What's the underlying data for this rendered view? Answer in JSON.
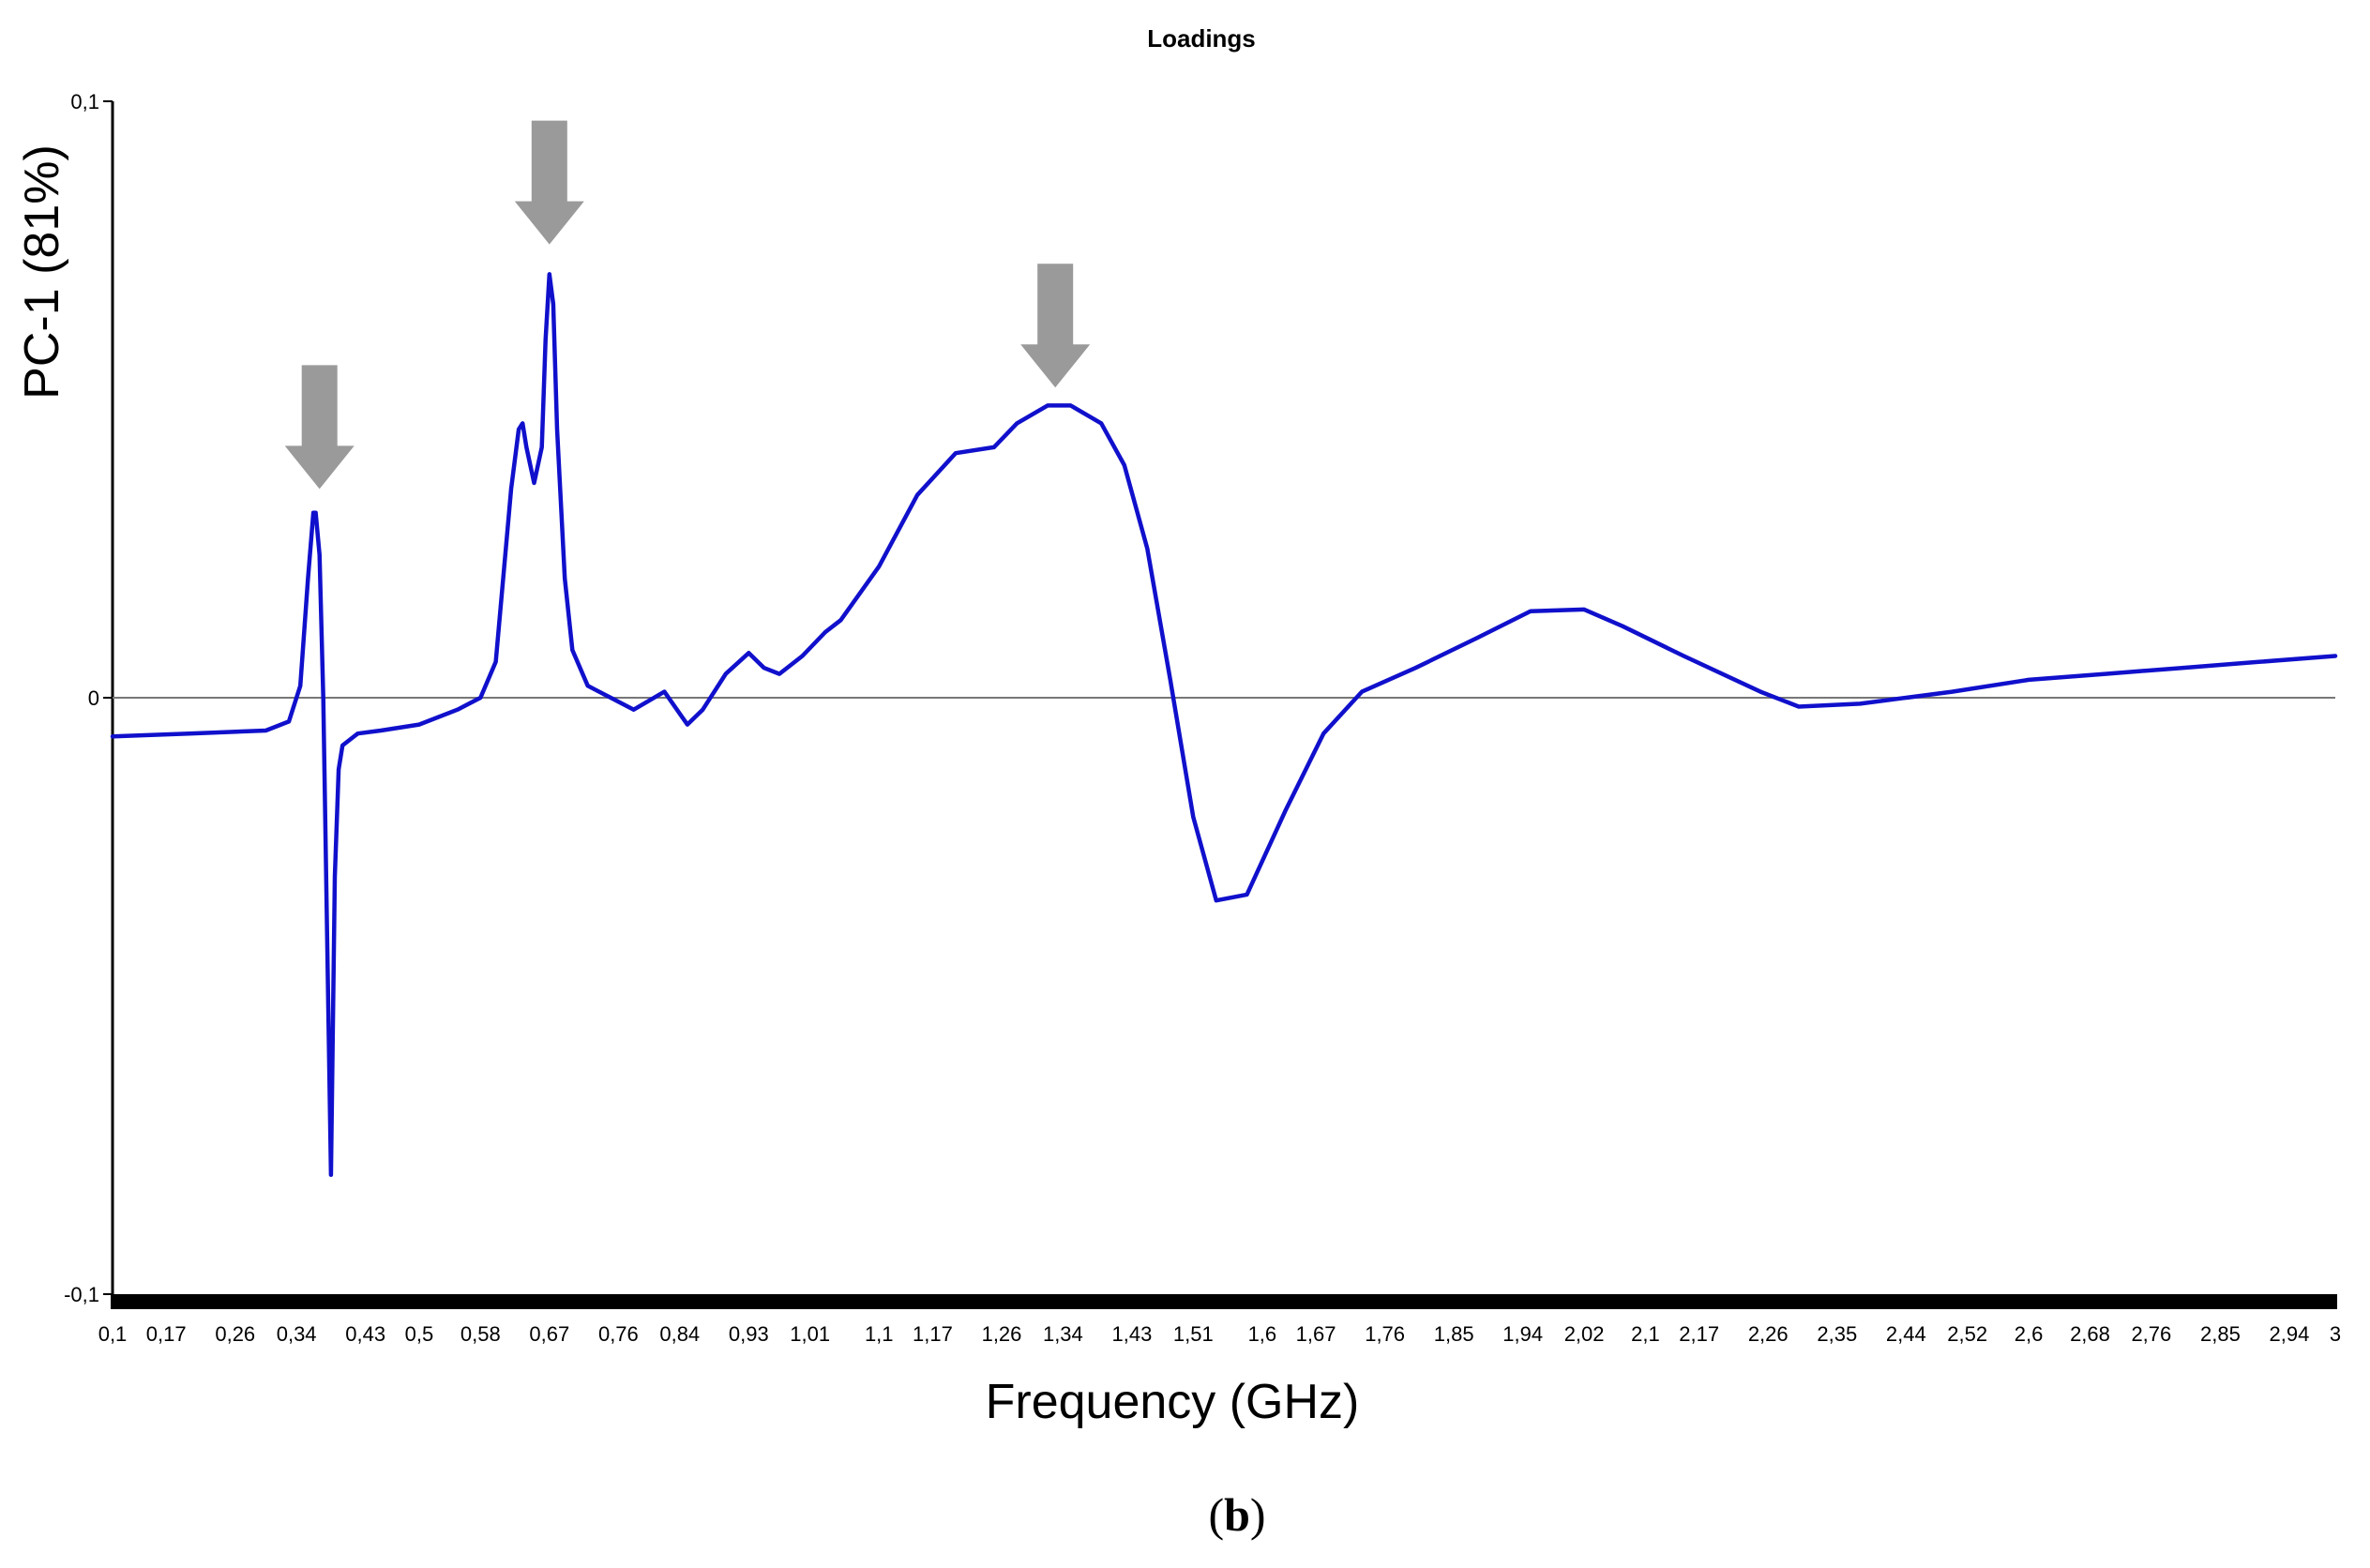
{
  "chart_data": {
    "type": "line",
    "title": "Loadings",
    "xlabel": "Frequency (GHz)",
    "ylabel": "PC-1 (81%)",
    "panel_label": {
      "open": "(",
      "letter": "b",
      "close": ")"
    },
    "xlim": [
      0.1,
      3.0
    ],
    "ylim": [
      -0.1,
      0.1
    ],
    "grid": false,
    "legend": "none",
    "line_color": "#1010cc",
    "arrow_color": "#9a9a9a",
    "y_ticks": [
      {
        "value": 0.1,
        "label": "0,1"
      },
      {
        "value": 0,
        "label": "0"
      },
      {
        "value": -0.1,
        "label": "-0,1"
      }
    ],
    "x_ticks": [
      {
        "value": 0.1,
        "label": "0,1"
      },
      {
        "value": 0.17,
        "label": "0,17"
      },
      {
        "value": 0.26,
        "label": "0,26"
      },
      {
        "value": 0.34,
        "label": "0,34"
      },
      {
        "value": 0.43,
        "label": "0,43"
      },
      {
        "value": 0.5,
        "label": "0,5"
      },
      {
        "value": 0.58,
        "label": "0,58"
      },
      {
        "value": 0.67,
        "label": "0,67"
      },
      {
        "value": 0.76,
        "label": "0,76"
      },
      {
        "value": 0.84,
        "label": "0,84"
      },
      {
        "value": 0.93,
        "label": "0,93"
      },
      {
        "value": 1.01,
        "label": "1,01"
      },
      {
        "value": 1.1,
        "label": "1,1"
      },
      {
        "value": 1.17,
        "label": "1,17"
      },
      {
        "value": 1.26,
        "label": "1,26"
      },
      {
        "value": 1.34,
        "label": "1,34"
      },
      {
        "value": 1.43,
        "label": "1,43"
      },
      {
        "value": 1.51,
        "label": "1,51"
      },
      {
        "value": 1.6,
        "label": "1,6"
      },
      {
        "value": 1.67,
        "label": "1,67"
      },
      {
        "value": 1.76,
        "label": "1,76"
      },
      {
        "value": 1.85,
        "label": "1,85"
      },
      {
        "value": 1.94,
        "label": "1,94"
      },
      {
        "value": 2.02,
        "label": "2,02"
      },
      {
        "value": 2.1,
        "label": "2,1"
      },
      {
        "value": 2.17,
        "label": "2,17"
      },
      {
        "value": 2.26,
        "label": "2,26"
      },
      {
        "value": 2.35,
        "label": "2,35"
      },
      {
        "value": 2.44,
        "label": "2,44"
      },
      {
        "value": 2.52,
        "label": "2,52"
      },
      {
        "value": 2.6,
        "label": "2,6"
      },
      {
        "value": 2.68,
        "label": "2,68"
      },
      {
        "value": 2.76,
        "label": "2,76"
      },
      {
        "value": 2.85,
        "label": "2,85"
      },
      {
        "value": 2.94,
        "label": "2,94"
      },
      {
        "value": 3.0,
        "label": "3"
      }
    ],
    "series": [
      {
        "x": [
          0.1,
          0.2,
          0.3,
          0.33,
          0.345,
          0.355,
          0.362,
          0.365,
          0.37,
          0.375,
          0.38,
          0.385,
          0.39,
          0.395,
          0.4,
          0.42,
          0.45,
          0.5,
          0.55,
          0.58,
          0.6,
          0.62,
          0.63,
          0.635,
          0.64,
          0.65,
          0.66,
          0.665,
          0.67,
          0.675,
          0.68,
          0.69,
          0.7,
          0.72,
          0.75,
          0.78,
          0.82,
          0.85,
          0.87,
          0.9,
          0.93,
          0.95,
          0.97,
          1.0,
          1.03,
          1.05,
          1.1,
          1.15,
          1.2,
          1.25,
          1.28,
          1.32,
          1.35,
          1.39,
          1.42,
          1.45,
          1.48,
          1.51,
          1.54,
          1.58,
          1.63,
          1.68,
          1.73,
          1.8,
          1.88,
          1.95,
          2.02,
          2.07,
          2.15,
          2.25,
          2.3,
          2.38,
          2.5,
          2.6,
          2.7,
          2.8,
          2.9,
          3.0
        ],
        "y": [
          -0.0065,
          -0.006,
          -0.0055,
          -0.004,
          0.002,
          0.02,
          0.031,
          0.031,
          0.024,
          0.0,
          -0.04,
          -0.08,
          -0.03,
          -0.012,
          -0.008,
          -0.006,
          -0.0055,
          -0.0045,
          -0.002,
          0.0,
          0.006,
          0.035,
          0.045,
          0.046,
          0.042,
          0.036,
          0.042,
          0.06,
          0.071,
          0.066,
          0.045,
          0.02,
          0.008,
          0.002,
          0.0,
          -0.002,
          0.001,
          -0.0045,
          -0.002,
          0.004,
          0.0075,
          0.005,
          0.004,
          0.007,
          0.011,
          0.013,
          0.022,
          0.034,
          0.041,
          0.042,
          0.046,
          0.049,
          0.049,
          0.046,
          0.039,
          0.025,
          0.003,
          -0.02,
          -0.034,
          -0.033,
          -0.019,
          -0.006,
          0.001,
          0.005,
          0.01,
          0.0145,
          0.0148,
          0.012,
          0.007,
          0.001,
          -0.0015,
          -0.001,
          0.001,
          0.003,
          0.004,
          0.005,
          0.006,
          0.007
        ]
      }
    ],
    "annotations": [
      {
        "type": "arrow",
        "x": 0.37,
        "tip_y": 0.035
      },
      {
        "type": "arrow",
        "x": 0.67,
        "tip_y": 0.076
      },
      {
        "type": "arrow",
        "x": 1.33,
        "tip_y": 0.052
      }
    ]
  }
}
